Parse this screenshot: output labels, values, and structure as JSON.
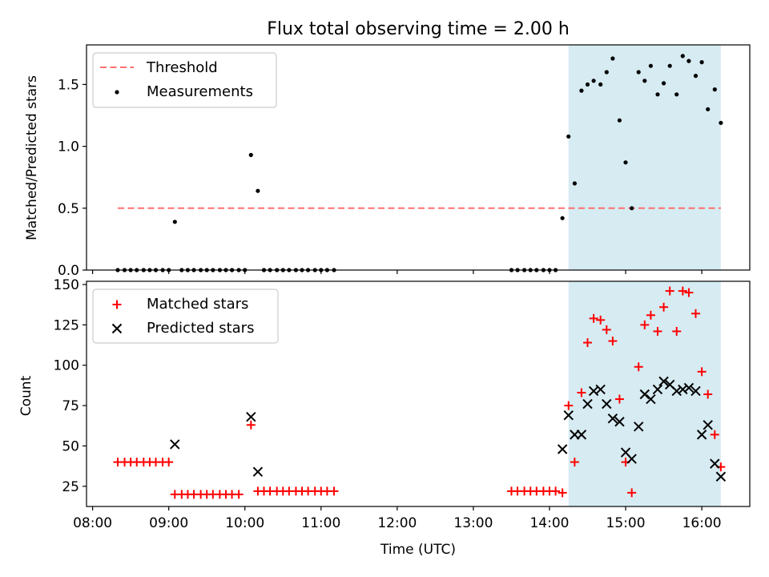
{
  "title": "Flux total observing time = 2.00 h",
  "colors": {
    "threshold": "#ff7070",
    "measurement": "#000000",
    "matched": "#ff0000",
    "predicted": "#000000",
    "span": "#add8e6"
  },
  "chart_data": [
    {
      "id": "ratio",
      "type": "scatter",
      "ylabel": "Matched/Predicted stars",
      "xlim": [
        7.92,
        16.63
      ],
      "ylim": [
        0,
        1.82
      ],
      "yticks": [
        0.0,
        0.5,
        1.0,
        1.5
      ],
      "ytick_labels": [
        "0.0",
        "0.5",
        "1.0",
        "1.5"
      ],
      "legend": {
        "location": "top-left",
        "entries": [
          "Threshold",
          "Measurements"
        ]
      },
      "threshold": {
        "label": "Threshold",
        "y": 0.5,
        "x_range": [
          8.33,
          16.25
        ]
      },
      "highlight_span": [
        14.25,
        16.25
      ],
      "series": [
        {
          "name": "Measurements",
          "x": [
            8.33,
            8.42,
            8.5,
            8.58,
            8.67,
            8.75,
            8.83,
            8.92,
            9.0,
            9.08,
            9.17,
            9.25,
            9.33,
            9.42,
            9.5,
            9.58,
            9.67,
            9.75,
            9.83,
            9.92,
            10.0,
            10.08,
            10.17,
            10.25,
            10.33,
            10.42,
            10.5,
            10.58,
            10.67,
            10.75,
            10.83,
            10.92,
            11.0,
            11.08,
            11.17,
            13.5,
            13.58,
            13.67,
            13.75,
            13.83,
            13.92,
            14.0,
            14.08,
            14.17,
            14.25,
            14.33,
            14.42,
            14.5,
            14.58,
            14.67,
            14.75,
            14.83,
            14.92,
            15.0,
            15.08,
            15.17,
            15.25,
            15.33,
            15.42,
            15.5,
            15.58,
            15.67,
            15.75,
            15.83,
            15.92,
            16.0,
            16.08,
            16.17,
            16.25
          ],
          "y": [
            0,
            0,
            0,
            0,
            0,
            0,
            0,
            0,
            0,
            0.39,
            0,
            0,
            0,
            0,
            0,
            0,
            0,
            0,
            0,
            0,
            0,
            0.93,
            0.64,
            0,
            0,
            0,
            0,
            0,
            0,
            0,
            0,
            0,
            0,
            0,
            0,
            0,
            0,
            0,
            0,
            0,
            0,
            0,
            0,
            0.42,
            1.08,
            0.7,
            1.45,
            1.5,
            1.53,
            1.5,
            1.6,
            1.71,
            1.21,
            0.87,
            0.5,
            1.6,
            1.53,
            1.65,
            1.42,
            1.51,
            1.65,
            1.42,
            1.73,
            1.69,
            1.57,
            1.68,
            1.3,
            1.46,
            1.19
          ]
        }
      ]
    },
    {
      "id": "count",
      "type": "scatter",
      "title": "",
      "xlabel": "Time (UTC)",
      "ylabel": "Count",
      "xlim": [
        7.92,
        16.63
      ],
      "ylim": [
        12.5,
        152
      ],
      "yticks": [
        25,
        50,
        75,
        100,
        125,
        150
      ],
      "ytick_labels": [
        "25",
        "50",
        "75",
        "100",
        "125",
        "150"
      ],
      "xticks": [
        8,
        9,
        10,
        11,
        12,
        13,
        14,
        15,
        16
      ],
      "xtick_labels": [
        "08:00",
        "09:00",
        "10:00",
        "11:00",
        "12:00",
        "13:00",
        "14:00",
        "15:00",
        "16:00"
      ],
      "legend": {
        "location": "top-left",
        "entries": [
          "Matched stars",
          "Predicted stars"
        ]
      },
      "highlight_span": [
        14.25,
        16.25
      ],
      "series": [
        {
          "name": "Matched stars",
          "marker": "+",
          "x": [
            8.33,
            8.42,
            8.5,
            8.58,
            8.67,
            8.75,
            8.83,
            8.92,
            9.0,
            9.08,
            9.17,
            9.25,
            9.33,
            9.42,
            9.5,
            9.58,
            9.67,
            9.75,
            9.83,
            9.92,
            10.08,
            10.17,
            10.25,
            10.33,
            10.42,
            10.5,
            10.58,
            10.67,
            10.75,
            10.83,
            10.92,
            11.0,
            11.08,
            11.17,
            13.5,
            13.58,
            13.67,
            13.75,
            13.83,
            13.92,
            14.0,
            14.08,
            14.17,
            14.25,
            14.33,
            14.42,
            14.5,
            14.58,
            14.67,
            14.75,
            14.83,
            14.92,
            15.0,
            15.08,
            15.17,
            15.25,
            15.33,
            15.42,
            15.5,
            15.58,
            15.67,
            15.75,
            15.83,
            15.92,
            16.0,
            16.08,
            16.17,
            16.25
          ],
          "y": [
            40,
            40,
            40,
            40,
            40,
            40,
            40,
            40,
            40,
            20,
            20,
            20,
            20,
            20,
            20,
            20,
            20,
            20,
            20,
            20,
            63,
            22,
            22,
            22,
            22,
            22,
            22,
            22,
            22,
            22,
            22,
            22,
            22,
            22,
            22,
            22,
            22,
            22,
            22,
            22,
            22,
            22,
            21,
            75,
            40,
            83,
            114,
            129,
            128,
            122,
            115,
            79,
            40,
            21,
            99,
            125,
            131,
            121,
            136,
            146,
            121,
            146,
            145,
            132,
            96,
            82,
            57,
            37
          ]
        },
        {
          "name": "Predicted stars",
          "marker": "x",
          "x": [
            9.08,
            10.08,
            10.17,
            14.17,
            14.25,
            14.33,
            14.42,
            14.5,
            14.58,
            14.67,
            14.75,
            14.83,
            14.92,
            15.0,
            15.08,
            15.17,
            15.25,
            15.33,
            15.42,
            15.5,
            15.58,
            15.67,
            15.75,
            15.83,
            15.92,
            16.0,
            16.08,
            16.17,
            16.25
          ],
          "y": [
            51,
            68,
            34,
            48,
            69,
            57,
            57,
            76,
            84,
            85,
            76,
            67,
            65,
            46,
            42,
            62,
            82,
            79,
            85,
            90,
            88,
            84,
            85,
            86,
            84,
            57,
            63,
            39,
            31
          ]
        }
      ]
    }
  ]
}
